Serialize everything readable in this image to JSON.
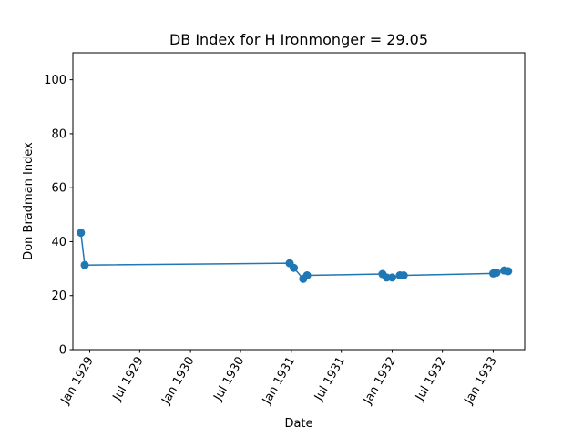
{
  "chart_data": {
    "type": "line",
    "title": "DB Index for H Ironmonger = 29.05",
    "xlabel": "Date",
    "ylabel": "Don Bradman Index",
    "ylim": [
      0,
      110
    ],
    "xlim": [
      "1928-11-01",
      "1933-04-25"
    ],
    "yticks": [
      0,
      20,
      40,
      60,
      80,
      100
    ],
    "xticks": [
      {
        "date": "1929-01-01",
        "label": "Jan 1929"
      },
      {
        "date": "1929-07-01",
        "label": "Jul 1929"
      },
      {
        "date": "1930-01-01",
        "label": "Jan 1930"
      },
      {
        "date": "1930-07-01",
        "label": "Jul 1930"
      },
      {
        "date": "1931-01-01",
        "label": "Jan 1931"
      },
      {
        "date": "1931-07-01",
        "label": "Jul 1931"
      },
      {
        "date": "1932-01-01",
        "label": "Jan 1932"
      },
      {
        "date": "1932-07-01",
        "label": "Jul 1932"
      },
      {
        "date": "1933-01-01",
        "label": "Jan 1933"
      }
    ],
    "grid": false,
    "series": [
      {
        "color": "#1f77b4",
        "points": [
          {
            "x": "1928-11-30",
            "y": 43.3
          },
          {
            "x": "1928-12-14",
            "y": 31.3
          },
          {
            "x": "1930-12-26",
            "y": 32.0
          },
          {
            "x": "1931-01-10",
            "y": 30.3
          },
          {
            "x": "1931-02-13",
            "y": 26.2
          },
          {
            "x": "1931-02-27",
            "y": 27.5
          },
          {
            "x": "1931-11-27",
            "y": 28.0
          },
          {
            "x": "1931-12-12",
            "y": 26.7
          },
          {
            "x": "1932-01-01",
            "y": 26.7
          },
          {
            "x": "1932-01-29",
            "y": 27.5
          },
          {
            "x": "1932-02-12",
            "y": 27.5
          },
          {
            "x": "1933-01-01",
            "y": 28.2
          },
          {
            "x": "1933-01-13",
            "y": 28.5
          },
          {
            "x": "1933-02-10",
            "y": 29.3
          },
          {
            "x": "1933-02-24",
            "y": 29.05
          }
        ]
      }
    ]
  }
}
